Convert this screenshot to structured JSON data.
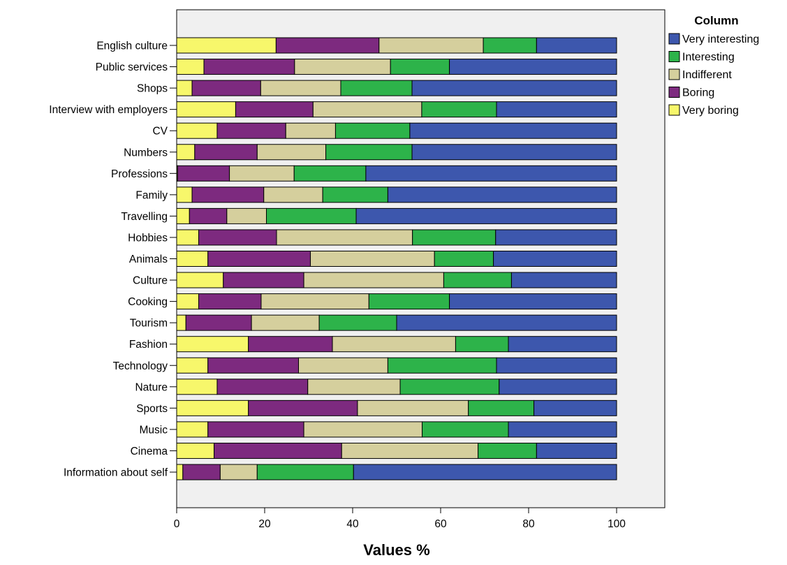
{
  "chart_data": {
    "type": "bar",
    "orientation": "horizontal",
    "stacked": true,
    "categories": [
      "English culture",
      "Public services",
      "Shops",
      "Interview with employers",
      "CV",
      "Numbers",
      "Professions",
      "Family",
      "Travelling",
      "Hobbies",
      "Animals",
      "Culture",
      "Cooking",
      "Tourism",
      "Fashion",
      "Technology",
      "Nature",
      "Sports",
      "Music",
      "Cinema",
      "Information about self"
    ],
    "series": [
      {
        "name": "Very boring",
        "color": "#f7f76b",
        "values": [
          22.6,
          6.2,
          3.5,
          13.4,
          9.2,
          4.1,
          0.2,
          3.5,
          2.9,
          5.0,
          7.1,
          10.6,
          5.0,
          2.1,
          16.3,
          7.1,
          9.2,
          16.3,
          7.1,
          8.5,
          1.4
        ]
      },
      {
        "name": "Boring",
        "color": "#7d2a7f",
        "values": [
          23.4,
          20.6,
          15.6,
          17.6,
          15.6,
          14.2,
          11.8,
          16.3,
          8.5,
          17.7,
          23.3,
          18.3,
          14.2,
          14.9,
          19.1,
          20.6,
          20.6,
          24.8,
          21.8,
          29.0,
          8.5
        ]
      },
      {
        "name": "Indifferent",
        "color": "#d5cf9d",
        "values": [
          23.7,
          21.8,
          18.2,
          24.7,
          11.3,
          15.6,
          14.7,
          13.4,
          9.0,
          30.9,
          28.2,
          31.8,
          24.5,
          15.4,
          28.0,
          20.3,
          21.0,
          25.2,
          26.9,
          31.0,
          8.4
        ]
      },
      {
        "name": "Interesting",
        "color": "#2db34a",
        "values": [
          12.1,
          13.4,
          16.2,
          17.0,
          16.9,
          19.6,
          16.3,
          14.8,
          20.4,
          18.9,
          13.4,
          15.4,
          18.3,
          17.6,
          12.0,
          24.7,
          22.5,
          14.9,
          19.6,
          13.3,
          21.9
        ]
      },
      {
        "name": "Very interesting",
        "color": "#3d57ad",
        "values": [
          18.2,
          38.0,
          46.5,
          27.3,
          47.0,
          46.5,
          57.0,
          52.0,
          59.2,
          27.5,
          28.0,
          23.9,
          38.0,
          50.0,
          24.6,
          27.3,
          26.7,
          18.8,
          24.6,
          18.2,
          59.8
        ]
      }
    ],
    "xlabel": "Values %",
    "ylabel": "",
    "xlim": [
      0,
      110
    ],
    "xticks": [
      "0",
      "20",
      "40",
      "60",
      "80",
      "100"
    ],
    "legend": {
      "title": "Column",
      "placement": "top-right outside",
      "order": [
        "Very interesting",
        "Interesting",
        "Indifferent",
        "Boring",
        "Very boring"
      ]
    },
    "plot_background": "#f0f0f0",
    "grid": false
  }
}
